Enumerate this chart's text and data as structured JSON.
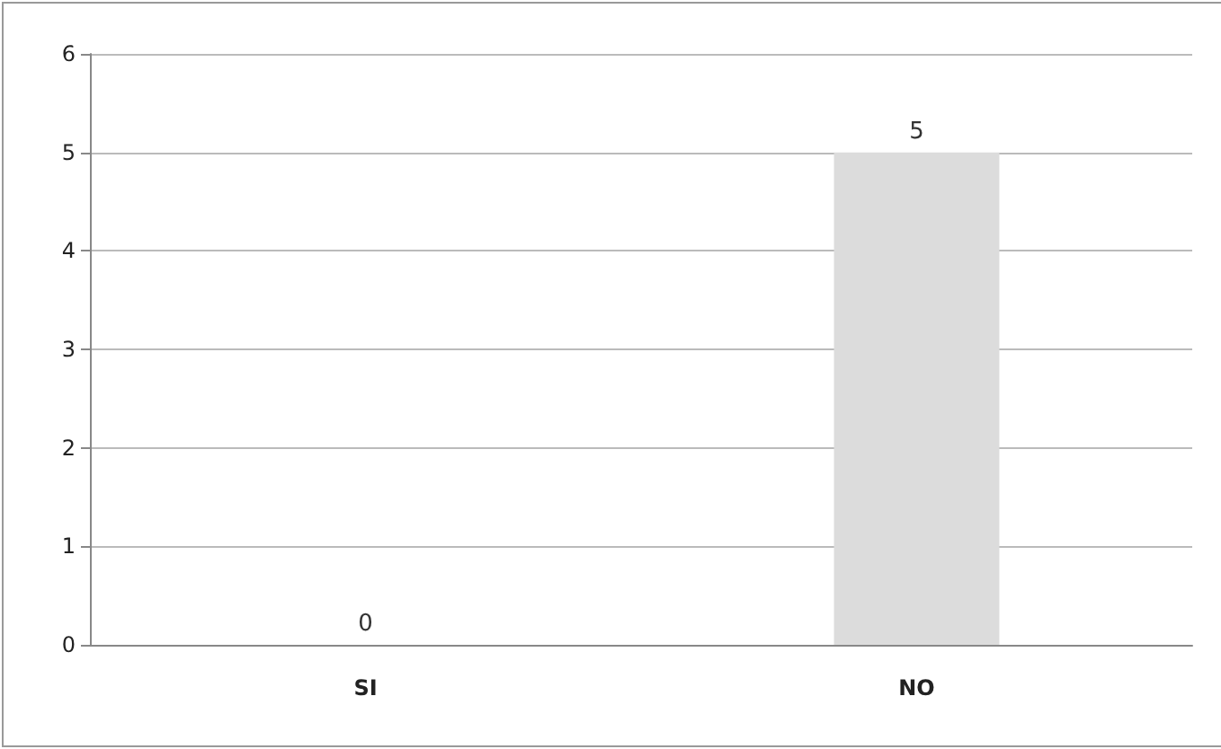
{
  "chart_data": {
    "type": "bar",
    "categories": [
      "SI",
      "NO"
    ],
    "values": [
      0,
      5
    ],
    "color": "#dcdcdc",
    "ylim": [
      0,
      6
    ],
    "yticks": [
      0,
      1,
      2,
      3,
      4,
      5,
      6
    ],
    "grid": "y",
    "data_labels": true
  }
}
